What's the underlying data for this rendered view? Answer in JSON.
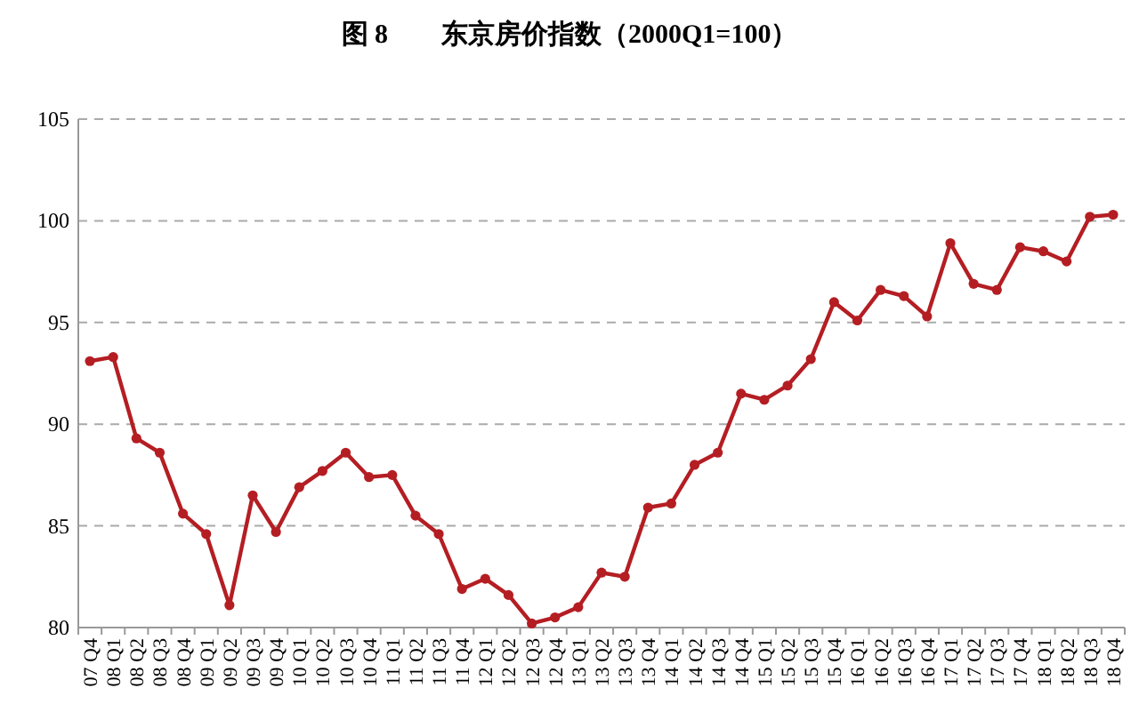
{
  "chart_data": {
    "type": "line",
    "title": "图 8　　东京房价指数（2000Q1=100）",
    "categories": [
      "07 Q4",
      "08 Q1",
      "08 Q2",
      "08 Q3",
      "08 Q4",
      "09 Q1",
      "09 Q2",
      "09 Q3",
      "09 Q4",
      "10 Q1",
      "10 Q2",
      "10 Q3",
      "10 Q4",
      "11 Q1",
      "11 Q2",
      "11 Q3",
      "11 Q4",
      "12 Q1",
      "12 Q2",
      "12 Q3",
      "12 Q4",
      "13 Q1",
      "13 Q2",
      "13 Q3",
      "13 Q4",
      "14 Q1",
      "14 Q2",
      "14 Q3",
      "14 Q4",
      "15 Q1",
      "15 Q2",
      "15 Q3",
      "15 Q4",
      "16 Q1",
      "16 Q2",
      "16 Q3",
      "16 Q4",
      "17 Q1",
      "17 Q2",
      "17 Q3",
      "17 Q4",
      "18 Q1",
      "18 Q2",
      "18 Q3",
      "18 Q4"
    ],
    "series": [
      {
        "color": "#b41e23",
        "values": [
          93.1,
          93.3,
          89.3,
          88.6,
          85.6,
          84.6,
          81.1,
          86.5,
          84.7,
          86.9,
          87.7,
          88.6,
          87.4,
          87.5,
          85.5,
          84.6,
          81.9,
          82.4,
          81.6,
          80.2,
          80.5,
          81.0,
          82.7,
          82.5,
          85.9,
          86.1,
          88.0,
          88.6,
          91.5,
          91.2,
          91.9,
          93.2,
          96.0,
          95.1,
          96.6,
          96.3,
          95.3,
          98.9,
          96.9,
          96.6,
          98.7,
          98.5,
          98.0,
          100.2,
          100.3
        ]
      }
    ],
    "ylim": [
      80,
      105
    ],
    "yticks": [
      80,
      85,
      90,
      95,
      100,
      105
    ],
    "grid": "y",
    "marker": "circle",
    "line_style": "solid"
  }
}
